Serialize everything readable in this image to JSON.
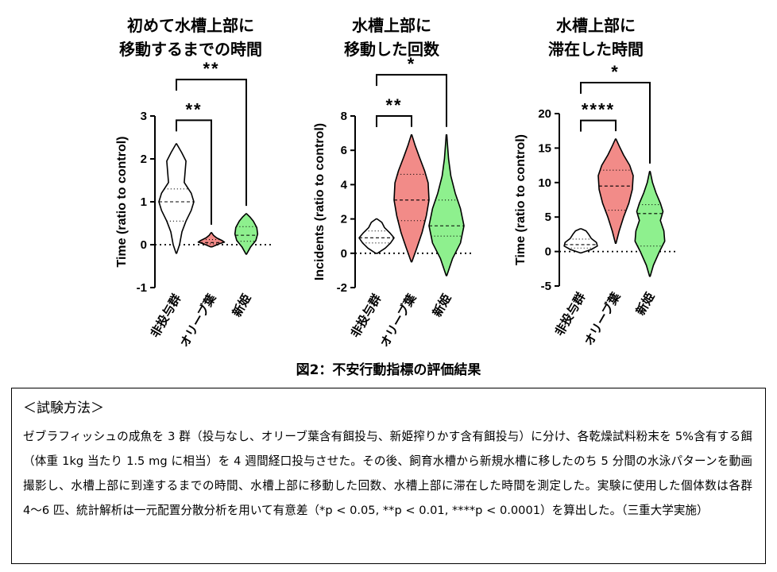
{
  "figure_caption": "図2：不安行動指標の評価結果",
  "chart_data": [
    {
      "type": "violin",
      "title_lines": [
        "初めて水槽上部に",
        "移動するまでの時間"
      ],
      "ylabel": "Time (ratio to control)",
      "ylim": [
        -1,
        3
      ],
      "yticks": [
        "-1",
        "0",
        "1",
        "2",
        "3"
      ],
      "categories": [
        "非投与群",
        "オリーブ葉",
        "新姫"
      ],
      "colors": [
        "#ffffff",
        "#f28b88",
        "#8ef08e"
      ],
      "series": [
        {
          "values": [
            {
              "min": -0.2,
              "max": 2.35,
              "median": 1.0,
              "q1": 0.55,
              "q3": 1.3,
              "profile": [
                [
                  -0.2,
                  0.02
                ],
                [
                  0.0,
                  0.18
                ],
                [
                  0.3,
                  0.32
                ],
                [
                  0.55,
                  0.55
                ],
                [
                  0.8,
                  0.85
                ],
                [
                  1.0,
                  1.0
                ],
                [
                  1.2,
                  0.85
                ],
                [
                  1.45,
                  0.45
                ],
                [
                  1.7,
                  0.5
                ],
                [
                  1.95,
                  0.55
                ],
                [
                  2.15,
                  0.3
                ],
                [
                  2.35,
                  0.02
                ]
              ]
            },
            {
              "min": -0.05,
              "max": 0.28,
              "median": 0.05,
              "q1": 0.02,
              "q3": 0.12,
              "profile": [
                [
                  -0.05,
                  0.05
                ],
                [
                  0.02,
                  0.45
                ],
                [
                  0.06,
                  0.75
                ],
                [
                  0.1,
                  0.6
                ],
                [
                  0.16,
                  0.3
                ],
                [
                  0.22,
                  0.12
                ],
                [
                  0.28,
                  0.02
                ]
              ]
            },
            {
              "min": -0.22,
              "max": 0.72,
              "median": 0.22,
              "q1": 0.08,
              "q3": 0.42,
              "profile": [
                [
                  -0.22,
                  0.02
                ],
                [
                  -0.05,
                  0.25
                ],
                [
                  0.1,
                  0.55
                ],
                [
                  0.25,
                  0.65
                ],
                [
                  0.4,
                  0.6
                ],
                [
                  0.55,
                  0.4
                ],
                [
                  0.65,
                  0.2
                ],
                [
                  0.72,
                  0.02
                ]
              ]
            }
          ]
        }
      ],
      "significance": [
        {
          "from": 0,
          "to": 1,
          "label": "**",
          "level": 2.9
        },
        {
          "from": 0,
          "to": 2,
          "label": "**",
          "level": 3.85
        }
      ]
    },
    {
      "type": "violin",
      "title_lines": [
        "水槽上部に",
        "移動した回数"
      ],
      "ylabel": "Incidents (ratio to control)",
      "ylim": [
        -2,
        8
      ],
      "yticks": [
        "-2",
        "0",
        "2",
        "4",
        "6",
        "8"
      ],
      "categories": [
        "非投与群",
        "オリーブ葉",
        "新姫"
      ],
      "colors": [
        "#ffffff",
        "#f28b88",
        "#8ef08e"
      ],
      "series": [
        {
          "values": [
            {
              "min": 0.0,
              "max": 2.0,
              "median": 0.9,
              "q1": 0.6,
              "q3": 1.3,
              "profile": [
                [
                  0.0,
                  0.05
                ],
                [
                  0.3,
                  0.5
                ],
                [
                  0.6,
                  0.8
                ],
                [
                  0.9,
                  1.0
                ],
                [
                  1.2,
                  0.75
                ],
                [
                  1.5,
                  0.45
                ],
                [
                  1.8,
                  0.3
                ],
                [
                  2.0,
                  0.03
                ]
              ]
            },
            {
              "min": -0.5,
              "max": 6.9,
              "median": 3.1,
              "q1": 1.9,
              "q3": 4.6,
              "profile": [
                [
                  -0.5,
                  0.02
                ],
                [
                  0.3,
                  0.3
                ],
                [
                  1.2,
                  0.6
                ],
                [
                  2.2,
                  0.85
                ],
                [
                  3.1,
                  1.0
                ],
                [
                  4.1,
                  0.95
                ],
                [
                  4.8,
                  0.75
                ],
                [
                  5.6,
                  0.45
                ],
                [
                  6.3,
                  0.2
                ],
                [
                  6.9,
                  0.02
                ]
              ]
            },
            {
              "min": -1.3,
              "max": 6.9,
              "median": 1.6,
              "q1": 1.0,
              "q3": 3.1,
              "profile": [
                [
                  -1.3,
                  0.02
                ],
                [
                  -0.3,
                  0.35
                ],
                [
                  0.6,
                  0.8
                ],
                [
                  1.6,
                  1.0
                ],
                [
                  2.6,
                  0.8
                ],
                [
                  3.5,
                  0.5
                ],
                [
                  4.5,
                  0.25
                ],
                [
                  5.5,
                  0.12
                ],
                [
                  6.3,
                  0.06
                ],
                [
                  6.9,
                  0.02
                ]
              ]
            }
          ]
        }
      ],
      "significance": [
        {
          "from": 0,
          "to": 1,
          "label": "**",
          "level": 8.0
        },
        {
          "from": 0,
          "to": 2,
          "label": "*",
          "level": 10.4
        }
      ]
    },
    {
      "type": "violin",
      "title_lines": [
        "水槽上部に",
        "滞在した時間"
      ],
      "ylabel": "Time (ratio to control)",
      "ylim": [
        -5,
        20
      ],
      "yticks": [
        "-5",
        "0",
        "5",
        "10",
        "15",
        "20"
      ],
      "categories": [
        "非投与群",
        "オリーブ葉",
        "新姫"
      ],
      "colors": [
        "#ffffff",
        "#f28b88",
        "#8ef08e"
      ],
      "series": [
        {
          "values": [
            {
              "min": -0.2,
              "max": 3.3,
              "median": 1.0,
              "q1": 0.5,
              "q3": 1.8,
              "profile": [
                [
                  -0.2,
                  0.03
                ],
                [
                  0.3,
                  0.6
                ],
                [
                  0.8,
                  0.95
                ],
                [
                  1.3,
                  0.9
                ],
                [
                  1.9,
                  0.6
                ],
                [
                  2.5,
                  0.45
                ],
                [
                  3.0,
                  0.3
                ],
                [
                  3.3,
                  0.03
                ]
              ]
            },
            {
              "min": 1.2,
              "max": 16.3,
              "median": 9.5,
              "q1": 6.0,
              "q3": 11.8,
              "profile": [
                [
                  1.2,
                  0.02
                ],
                [
                  3.0,
                  0.2
                ],
                [
                  5.0,
                  0.45
                ],
                [
                  7.0,
                  0.75
                ],
                [
                  9.0,
                  0.95
                ],
                [
                  11.0,
                  1.0
                ],
                [
                  12.5,
                  0.8
                ],
                [
                  14.0,
                  0.45
                ],
                [
                  15.3,
                  0.2
                ],
                [
                  16.3,
                  0.02
                ]
              ]
            },
            {
              "min": -3.6,
              "max": 11.6,
              "median": 5.5,
              "q1": 0.8,
              "q3": 6.8,
              "profile": [
                [
                  -3.6,
                  0.02
                ],
                [
                  -2.0,
                  0.2
                ],
                [
                  0.0,
                  0.55
                ],
                [
                  1.5,
                  0.85
                ],
                [
                  3.0,
                  0.8
                ],
                [
                  4.5,
                  0.6
                ],
                [
                  5.8,
                  0.75
                ],
                [
                  7.0,
                  0.6
                ],
                [
                  8.5,
                  0.35
                ],
                [
                  10.0,
                  0.15
                ],
                [
                  11.6,
                  0.02
                ]
              ]
            }
          ]
        }
      ],
      "significance": [
        {
          "from": 0,
          "to": 1,
          "label": "****",
          "level": 19.0
        },
        {
          "from": 0,
          "to": 2,
          "label": "*",
          "level": 24.5
        }
      ]
    }
  ],
  "method": {
    "title": "＜試験方法＞",
    "body": "ゼブラフィッシュの成魚を 3 群（投与なし、オリーブ葉含有餌投与、新姫搾りかす含有餌投与）に分け、各乾燥試料粉末を 5%含有する餌（体重 1kg 当たり 1.5 mg に相当）を 4 週間経口投与させた。その後、飼育水槽から新規水槽に移したのち 5 分間の水泳パターンを動画撮影し、水槽上部に到達するまでの時間、水槽上部に移動した回数、水槽上部に滞在した時間を測定した。実験に使用した個体数は各群 4〜6 匹、統計解析は一元配置分散分析を用いて有意差（*p < 0.05, **p < 0.01, ****p < 0.0001）を算出した。（三重大学実施）"
  }
}
